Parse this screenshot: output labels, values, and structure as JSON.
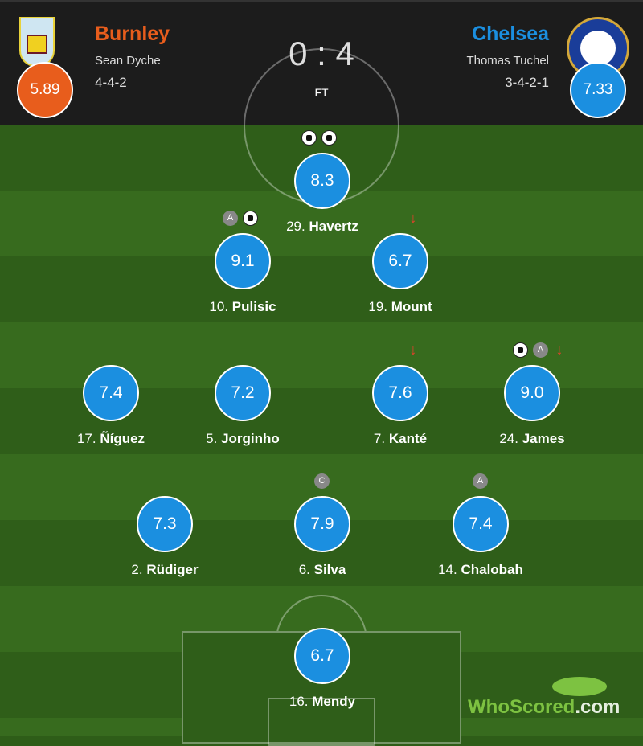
{
  "home": {
    "name": "Burnley",
    "manager": "Sean Dyche",
    "formation": "4-4-2",
    "rating": "5.89",
    "color": "#e85d1c"
  },
  "away": {
    "name": "Chelsea",
    "manager": "Thomas Tuchel",
    "formation": "3-4-2-1",
    "rating": "7.33",
    "color": "#1b8fe0"
  },
  "score": "0 : 4",
  "status": "FT",
  "players": [
    {
      "num": "29.",
      "name": "Havertz",
      "rating": "8.3",
      "icons": [
        "ball",
        "ball"
      ]
    },
    {
      "num": "10.",
      "name": "Pulisic",
      "rating": "9.1",
      "icons": [
        "assist",
        "ball"
      ]
    },
    {
      "num": "19.",
      "name": "Mount",
      "rating": "6.7",
      "icons": [
        "sub-off"
      ]
    },
    {
      "num": "17.",
      "name": "Ñíguez",
      "rating": "7.4",
      "icons": []
    },
    {
      "num": "5.",
      "name": "Jorginho",
      "rating": "7.2",
      "icons": []
    },
    {
      "num": "7.",
      "name": "Kanté",
      "rating": "7.6",
      "icons": [
        "sub-off"
      ]
    },
    {
      "num": "24.",
      "name": "James",
      "rating": "9.0",
      "icons": [
        "ball",
        "assist",
        "sub-off"
      ]
    },
    {
      "num": "2.",
      "name": "Rüdiger",
      "rating": "7.3",
      "icons": []
    },
    {
      "num": "6.",
      "name": "Silva",
      "rating": "7.9",
      "icons": [
        "captain"
      ]
    },
    {
      "num": "14.",
      "name": "Chalobah",
      "rating": "7.4",
      "icons": [
        "assist"
      ]
    },
    {
      "num": "16.",
      "name": "Mendy",
      "rating": "6.7",
      "icons": []
    }
  ],
  "badges": {
    "assist": "A",
    "captain": "C",
    "sub_off": "↓"
  },
  "logo": {
    "text1": "WhoScored",
    "text2": ".com"
  }
}
